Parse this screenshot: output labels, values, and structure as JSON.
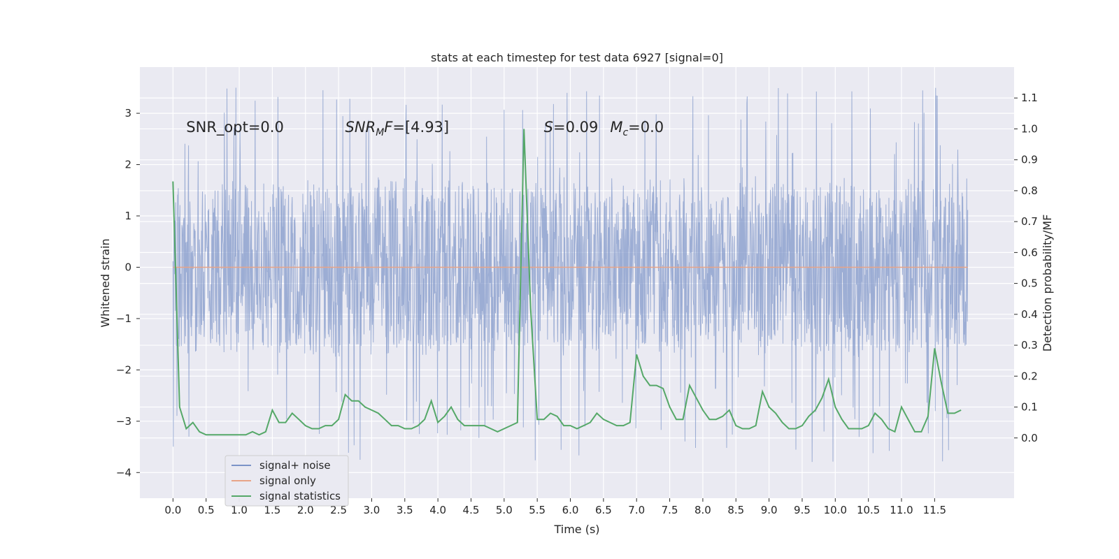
{
  "chart_data": {
    "type": "line",
    "title": "stats at each timestep for test data 6927 [signal=0]",
    "xlabel": "Time (s)",
    "ylabel": "Whitened strain",
    "y2label": "Detection probability/MF",
    "xlim": [
      -0.5,
      12.7
    ],
    "ylim": [
      -4.5,
      3.9
    ],
    "y2lim": [
      -0.195,
      1.2
    ],
    "x_ticks": [
      "0.0",
      "0.5",
      "1.0",
      "1.5",
      "2.0",
      "2.5",
      "3.0",
      "3.5",
      "4.0",
      "4.5",
      "5.0",
      "5.5",
      "6.0",
      "6.5",
      "7.0",
      "7.5",
      "8.0",
      "8.5",
      "9.0",
      "9.5",
      "10.0",
      "10.5",
      "11.0",
      "11.5"
    ],
    "y_ticks": [
      "3",
      "2",
      "1",
      "0",
      "−1",
      "−2",
      "−3",
      "−4"
    ],
    "y2_ticks": [
      "1.1",
      "1.0",
      "0.9",
      "0.8",
      "0.7",
      "0.6",
      "0.5",
      "0.4",
      "0.3",
      "0.2",
      "0.1",
      "0.0"
    ],
    "grid": true,
    "legend_position": "lower-left",
    "annotations": [
      {
        "text": "SNR_opt=0.0",
        "x": 0.2,
        "y2": 1.005
      },
      {
        "text": "SNR",
        "sub": "M",
        "suffix": "F=[4.93]",
        "italic": true,
        "x": 2.6,
        "y2": 1.005
      },
      {
        "text": "S",
        "suffix": "=0.09",
        "italic": true,
        "x": 5.6,
        "y2": 1.005
      },
      {
        "text": "M",
        "sub": "c",
        "suffix": "=0.0",
        "italic": true,
        "x": 6.6,
        "y2": 1.005
      }
    ],
    "series": [
      {
        "name": "signal+ noise",
        "color": "#7b93c8",
        "axis": "left",
        "x_range": [
          0.0,
          12.0
        ],
        "envelope": {
          "typical_max": 1.5,
          "typical_min": -1.5,
          "peak_max": 3.5,
          "peak_min": -3.8
        }
      },
      {
        "name": "signal only",
        "color": "#e8a487",
        "axis": "left",
        "x": [
          0.0,
          12.0
        ],
        "y": [
          0.0,
          0.0
        ]
      },
      {
        "name": "signal statistics",
        "color": "#55a868",
        "axis": "right",
        "x": [
          0.0,
          0.1,
          0.2,
          0.3,
          0.4,
          0.5,
          0.6,
          0.7,
          0.8,
          0.9,
          1.0,
          1.1,
          1.2,
          1.3,
          1.4,
          1.5,
          1.6,
          1.7,
          1.8,
          1.9,
          2.0,
          2.1,
          2.2,
          2.3,
          2.4,
          2.5,
          2.6,
          2.7,
          2.8,
          2.9,
          3.0,
          3.1,
          3.2,
          3.3,
          3.4,
          3.5,
          3.6,
          3.7,
          3.8,
          3.9,
          4.0,
          4.1,
          4.2,
          4.3,
          4.4,
          4.5,
          4.6,
          4.7,
          4.8,
          4.9,
          5.0,
          5.1,
          5.2,
          5.3,
          5.4,
          5.5,
          5.6,
          5.7,
          5.8,
          5.9,
          6.0,
          6.1,
          6.2,
          6.3,
          6.4,
          6.5,
          6.6,
          6.7,
          6.8,
          6.9,
          7.0,
          7.1,
          7.2,
          7.3,
          7.4,
          7.5,
          7.6,
          7.7,
          7.8,
          7.9,
          8.0,
          8.1,
          8.2,
          8.3,
          8.4,
          8.5,
          8.6,
          8.7,
          8.8,
          8.9,
          9.0,
          9.1,
          9.2,
          9.3,
          9.4,
          9.5,
          9.6,
          9.7,
          9.8,
          9.9,
          10.0,
          10.1,
          10.2,
          10.3,
          10.4,
          10.5,
          10.6,
          10.7,
          10.8,
          10.9,
          11.0,
          11.1,
          11.2,
          11.3,
          11.4,
          11.5,
          11.6,
          11.7,
          11.8,
          11.9
        ],
        "y": [
          0.83,
          0.1,
          0.03,
          0.05,
          0.02,
          0.01,
          0.01,
          0.01,
          0.01,
          0.01,
          0.01,
          0.01,
          0.02,
          0.01,
          0.02,
          0.09,
          0.05,
          0.05,
          0.08,
          0.06,
          0.04,
          0.03,
          0.03,
          0.04,
          0.04,
          0.06,
          0.14,
          0.12,
          0.12,
          0.1,
          0.09,
          0.08,
          0.06,
          0.04,
          0.04,
          0.03,
          0.03,
          0.04,
          0.06,
          0.12,
          0.05,
          0.07,
          0.1,
          0.06,
          0.04,
          0.04,
          0.04,
          0.04,
          0.03,
          0.02,
          0.03,
          0.04,
          0.05,
          1.0,
          0.42,
          0.06,
          0.06,
          0.08,
          0.07,
          0.04,
          0.04,
          0.03,
          0.04,
          0.05,
          0.08,
          0.06,
          0.05,
          0.04,
          0.04,
          0.05,
          0.27,
          0.2,
          0.17,
          0.17,
          0.16,
          0.1,
          0.06,
          0.06,
          0.17,
          0.13,
          0.09,
          0.06,
          0.06,
          0.07,
          0.09,
          0.04,
          0.03,
          0.03,
          0.04,
          0.15,
          0.1,
          0.08,
          0.05,
          0.03,
          0.03,
          0.04,
          0.07,
          0.09,
          0.13,
          0.19,
          0.1,
          0.06,
          0.03,
          0.03,
          0.03,
          0.04,
          0.08,
          0.06,
          0.03,
          0.02,
          0.1,
          0.06,
          0.02,
          0.02,
          0.07,
          0.29,
          0.18,
          0.08,
          0.08,
          0.09
        ]
      }
    ]
  }
}
